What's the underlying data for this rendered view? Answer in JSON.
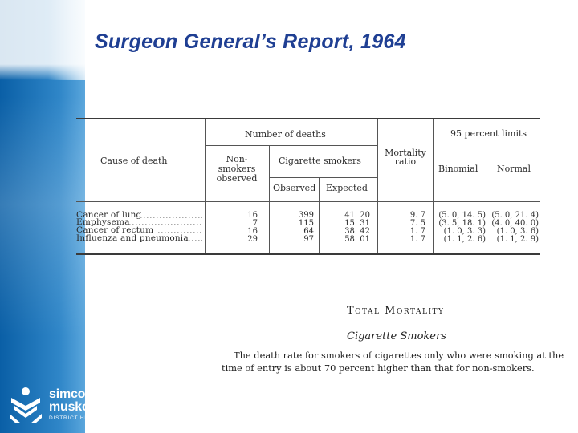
{
  "slide": {
    "title": "Surgeon General’s Report, 1964"
  },
  "table": {
    "header": {
      "cause": "Cause of death",
      "number_of_deaths": "Number of deaths",
      "nonsmokers": [
        "Non-",
        "smokers",
        "observed"
      ],
      "cigarette_smokers": "Cigarette smokers",
      "observed": "Observed",
      "expected": "Expected",
      "mortality_ratio": [
        "Mortality",
        "ratio"
      ],
      "limits": "95 percent limits",
      "binomial": "Binomial",
      "normal": "Normal"
    },
    "rows": [
      {
        "cause": "Cancer of lung",
        "nonsmokers": "16",
        "observed": "399",
        "expected": "41. 20",
        "ratio": "9. 7",
        "binomial": "(5. 0, 14. 5)",
        "normal": "(5. 0, 21. 4)"
      },
      {
        "cause": "Emphysema",
        "nonsmokers": "7",
        "observed": "115",
        "expected": "15. 31",
        "ratio": "7. 5",
        "binomial": "(3. 5, 18. 1)",
        "normal": "(4. 0, 40. 0)"
      },
      {
        "cause": "Cancer of rectum",
        "nonsmokers": "16",
        "observed": "64",
        "expected": "38. 42",
        "ratio": "1. 7",
        "binomial": "(1. 0, 3. 3)",
        "normal": "(1. 0, 3. 6)"
      },
      {
        "cause": "Influenza and pneumonia",
        "nonsmokers": "29",
        "observed": "97",
        "expected": "58. 01",
        "ratio": "1. 7",
        "binomial": "(1. 1, 2. 6)",
        "normal": "(1. 1, 2. 9)"
      }
    ]
  },
  "excerpt": {
    "heading": "Total Mortality",
    "subheading": "Cigarette Smokers",
    "line1": "The death rate for smokers of cigarettes only who were smoking at the",
    "line2": "time of entry is about 70 percent higher than that for non-smokers."
  },
  "logo": {
    "name_line1": "simcoe",
    "name_line2": "muskoka",
    "unit": "DISTRICT HEALTH UNIT",
    "colors": {
      "text": "#ffffff",
      "band": "#1d74bb"
    }
  },
  "colors": {
    "title": "#1f3f93",
    "band": "#1d74bb",
    "background": "#ffffff"
  }
}
